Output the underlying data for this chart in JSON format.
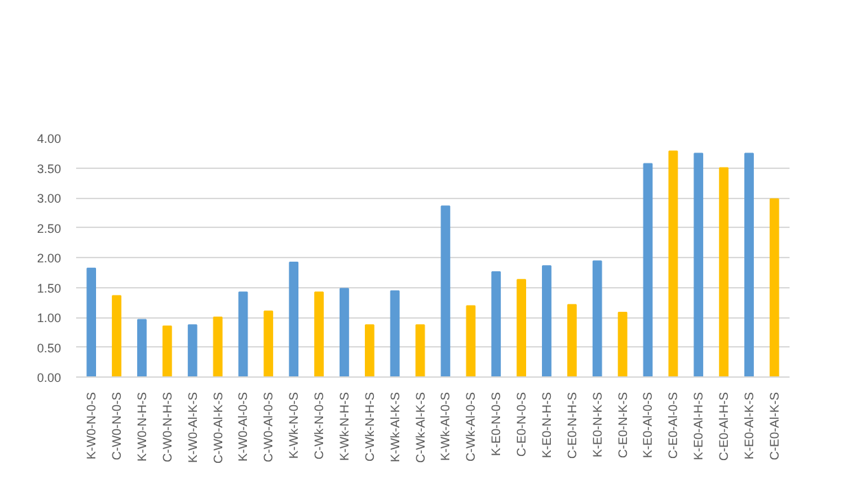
{
  "chart_data": {
    "type": "bar",
    "categories": [
      "K-W0-N-0-S",
      "C-W0-N-0-S",
      "K-W0-N-H-S",
      "C-W0-N-H-S",
      "K-W0-Al-K-S",
      "C-W0-Al-K-S",
      "K-W0-Al-0-S",
      "C-W0-Al-0-S",
      "K-Wk-N-0-S",
      "C-Wk-N-0-S",
      "K-Wk-N-H-S",
      "C-Wk-N-H-S",
      "K-Wk-Al-K-S",
      "C-Wk-Al-K-S",
      "K-Wk-Al-0-S",
      "C-Wk-Al-0-S",
      "K-E0-N-0-S",
      "C-E0-N-0-S",
      "K-E0-N-H-S",
      "C-E0-N-H-S",
      "K-E0-N-K-S",
      "C-E0-N-K-S",
      "K-E0-Al-0-S",
      "C-E0-Al-0-S",
      "K-E0-Al-H-S",
      "C-E0-Al-H-S",
      "K-E0-Al-K-S",
      "C-E0-Al-K-S"
    ],
    "values": [
      1.82,
      1.36,
      0.96,
      0.85,
      0.87,
      1.0,
      1.42,
      1.1,
      1.92,
      1.42,
      1.48,
      0.87,
      1.44,
      0.87,
      2.86,
      1.19,
      1.76,
      1.63,
      1.86,
      1.21,
      1.94,
      1.08,
      3.57,
      3.78,
      3.74,
      3.5,
      3.74,
      2.98
    ],
    "colors": [
      "#5b9bd5",
      "#ffc000",
      "#5b9bd5",
      "#ffc000",
      "#5b9bd5",
      "#ffc000",
      "#5b9bd5",
      "#ffc000",
      "#5b9bd5",
      "#ffc000",
      "#5b9bd5",
      "#ffc000",
      "#5b9bd5",
      "#ffc000",
      "#5b9bd5",
      "#ffc000",
      "#5b9bd5",
      "#ffc000",
      "#5b9bd5",
      "#ffc000",
      "#5b9bd5",
      "#ffc000",
      "#5b9bd5",
      "#ffc000",
      "#5b9bd5",
      "#ffc000",
      "#5b9bd5",
      "#ffc000"
    ],
    "ylim": [
      0,
      4
    ],
    "yticks": [
      {
        "value": 0,
        "label": "0.00"
      },
      {
        "value": 0.5,
        "label": "0.50"
      },
      {
        "value": 1,
        "label": "1.00"
      },
      {
        "value": 1.5,
        "label": "1.50"
      },
      {
        "value": 2,
        "label": "2.00"
      },
      {
        "value": 2.5,
        "label": "2.50"
      },
      {
        "value": 3,
        "label": "3.00"
      },
      {
        "value": 3.5,
        "label": "3.50"
      },
      {
        "value": 4,
        "label": "4.00"
      }
    ],
    "grid": "y"
  }
}
